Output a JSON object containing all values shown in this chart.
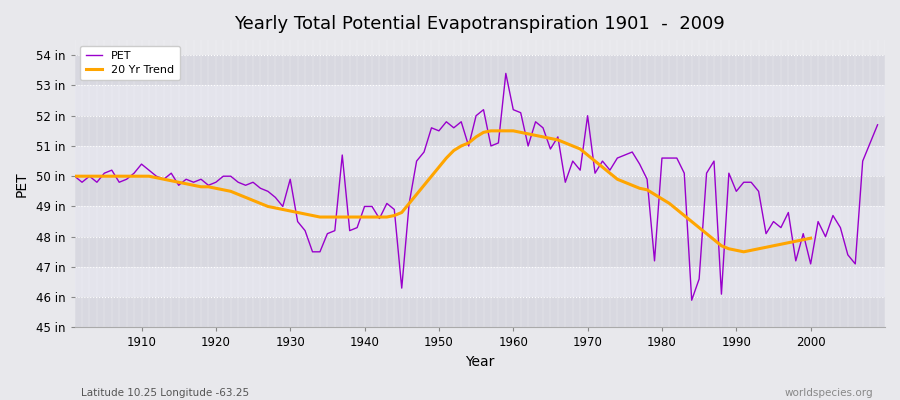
{
  "title": "Yearly Total Potential Evapotranspiration 1901  -  2009",
  "xlabel": "Year",
  "ylabel": "PET",
  "subtitle_left": "Latitude 10.25 Longitude -63.25",
  "subtitle_right": "worldspecies.org",
  "pet_color": "#9900cc",
  "trend_color": "#ffa500",
  "bg_color": "#e8e8ec",
  "band_light": "#dcdce4",
  "band_dark": "#e8e8f0",
  "ylim": [
    45,
    54.5
  ],
  "yticks": [
    45,
    46,
    47,
    48,
    49,
    50,
    51,
    52,
    53,
    54
  ],
  "ytick_labels": [
    "45 in",
    "46 in",
    "47 in",
    "48 in",
    "49 in",
    "50 in",
    "51 in",
    "52 in",
    "53 in",
    "54 in"
  ],
  "xlim": [
    1901,
    2010
  ],
  "years": [
    1901,
    1902,
    1903,
    1904,
    1905,
    1906,
    1907,
    1908,
    1909,
    1910,
    1911,
    1912,
    1913,
    1914,
    1915,
    1916,
    1917,
    1918,
    1919,
    1920,
    1921,
    1922,
    1923,
    1924,
    1925,
    1926,
    1927,
    1928,
    1929,
    1930,
    1931,
    1932,
    1933,
    1934,
    1935,
    1936,
    1937,
    1938,
    1939,
    1940,
    1941,
    1942,
    1943,
    1944,
    1945,
    1946,
    1947,
    1948,
    1949,
    1950,
    1951,
    1952,
    1953,
    1954,
    1955,
    1956,
    1957,
    1958,
    1959,
    1960,
    1961,
    1962,
    1963,
    1964,
    1965,
    1966,
    1967,
    1968,
    1969,
    1970,
    1971,
    1972,
    1973,
    1974,
    1975,
    1976,
    1977,
    1978,
    1979,
    1980,
    1981,
    1982,
    1983,
    1984,
    1985,
    1986,
    1987,
    1988,
    1989,
    1990,
    1991,
    1992,
    1993,
    1994,
    1995,
    1996,
    1997,
    1998,
    1999,
    2000,
    2001,
    2002,
    2003,
    2004,
    2005,
    2006,
    2007,
    2008,
    2009
  ],
  "pet": [
    50.0,
    49.8,
    50.0,
    49.8,
    50.1,
    50.2,
    49.8,
    49.9,
    50.1,
    50.4,
    50.2,
    50.0,
    49.9,
    50.1,
    49.7,
    49.9,
    49.8,
    49.9,
    49.7,
    49.8,
    50.0,
    50.0,
    49.8,
    49.7,
    49.8,
    49.6,
    49.5,
    49.3,
    49.0,
    49.9,
    48.5,
    48.2,
    47.5,
    47.5,
    48.1,
    48.2,
    50.7,
    48.2,
    48.3,
    49.0,
    49.0,
    48.6,
    49.1,
    48.9,
    46.3,
    49.1,
    50.5,
    50.8,
    51.6,
    51.5,
    51.8,
    51.6,
    51.8,
    51.0,
    52.0,
    52.2,
    51.0,
    51.1,
    53.4,
    52.2,
    52.1,
    51.0,
    51.8,
    51.6,
    50.9,
    51.3,
    49.8,
    50.5,
    50.2,
    52.0,
    50.1,
    50.5,
    50.2,
    50.6,
    50.7,
    50.8,
    50.4,
    49.9,
    47.2,
    50.6,
    50.6,
    50.6,
    50.1,
    45.9,
    46.6,
    50.1,
    50.5,
    46.1,
    50.1,
    49.5,
    49.8,
    49.8,
    49.5,
    48.1,
    48.5,
    48.3,
    48.8,
    47.2,
    48.1,
    47.1,
    48.5,
    48.0,
    48.7,
    48.3,
    47.4,
    47.1,
    50.5,
    51.1,
    51.7
  ],
  "trend_years": [
    1901,
    1902,
    1903,
    1904,
    1905,
    1906,
    1907,
    1908,
    1909,
    1910,
    1911,
    1912,
    1913,
    1914,
    1915,
    1916,
    1917,
    1918,
    1919,
    1920,
    1921,
    1922,
    1923,
    1924,
    1925,
    1926,
    1927,
    1928,
    1929,
    1930,
    1931,
    1932,
    1933,
    1934,
    1935,
    1936,
    1937,
    1938,
    1939,
    1940,
    1941,
    1942,
    1943,
    1944,
    1945,
    1946,
    1947,
    1948,
    1949,
    1950,
    1951,
    1952,
    1953,
    1954,
    1955,
    1956,
    1957,
    1958,
    1959,
    1960,
    1961,
    1962,
    1963,
    1964,
    1965,
    1966,
    1967,
    1968,
    1969,
    1970,
    1971,
    1972,
    1973,
    1974,
    1975,
    1976,
    1977,
    1978,
    1979,
    1980,
    1981,
    1982,
    1983,
    1984,
    1985,
    1986,
    1987,
    1988,
    1989,
    1990,
    1991,
    1992,
    1993,
    1994,
    1995,
    1996,
    1997,
    1998,
    1999,
    2000
  ],
  "trend": [
    50.0,
    50.0,
    50.0,
    50.0,
    50.0,
    50.0,
    50.0,
    50.0,
    50.0,
    50.0,
    50.0,
    49.95,
    49.9,
    49.85,
    49.8,
    49.75,
    49.7,
    49.65,
    49.65,
    49.6,
    49.55,
    49.5,
    49.4,
    49.3,
    49.2,
    49.1,
    49.0,
    48.95,
    48.9,
    48.85,
    48.8,
    48.75,
    48.7,
    48.65,
    48.65,
    48.65,
    48.65,
    48.65,
    48.65,
    48.65,
    48.65,
    48.65,
    48.65,
    48.7,
    48.8,
    49.1,
    49.4,
    49.7,
    50.0,
    50.3,
    50.6,
    50.85,
    51.0,
    51.1,
    51.3,
    51.45,
    51.5,
    51.5,
    51.5,
    51.5,
    51.45,
    51.4,
    51.35,
    51.3,
    51.25,
    51.2,
    51.1,
    51.0,
    50.9,
    50.7,
    50.5,
    50.3,
    50.1,
    49.9,
    49.8,
    49.7,
    49.6,
    49.55,
    49.4,
    49.25,
    49.1,
    48.9,
    48.7,
    48.5,
    48.3,
    48.1,
    47.9,
    47.7,
    47.6,
    47.55,
    47.5,
    47.55,
    47.6,
    47.65,
    47.7,
    47.75,
    47.8,
    47.85,
    47.9,
    47.95
  ]
}
